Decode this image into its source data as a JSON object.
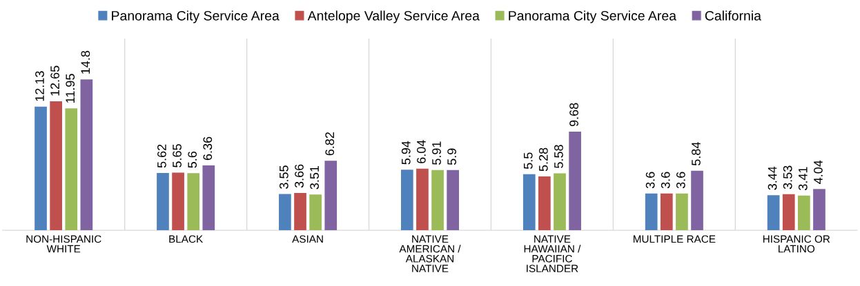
{
  "chart_data": {
    "type": "bar",
    "categories": [
      "NON-HISPANIC\nWHITE",
      "BLACK",
      "ASIAN",
      "NATIVE\nAMERICAN /\nALASKAN\nNATIVE",
      "NATIVE\nHAWAIIAN /\nPACIFIC\nISLANDER",
      "MULTIPLE RACE",
      "HISPANIC OR\nLATINO"
    ],
    "series": [
      {
        "name": "Panorama City Service Area",
        "color": "#4f81bd",
        "values": [
          12.13,
          5.62,
          3.55,
          5.94,
          5.5,
          3.6,
          3.44
        ]
      },
      {
        "name": "Antelope Valley Service Area",
        "color": "#c0504d",
        "values": [
          12.65,
          5.65,
          3.66,
          6.04,
          5.28,
          3.6,
          3.53
        ]
      },
      {
        "name": "Panorama City Service Area",
        "color": "#9bbb59",
        "values": [
          11.95,
          5.6,
          3.51,
          5.91,
          5.58,
          3.6,
          3.41
        ]
      },
      {
        "name": "California",
        "color": "#8064a2",
        "values": [
          14.8,
          6.36,
          6.82,
          5.9,
          9.68,
          5.84,
          4.04
        ]
      }
    ],
    "data_labels": true,
    "legend": "top",
    "grid": false
  }
}
